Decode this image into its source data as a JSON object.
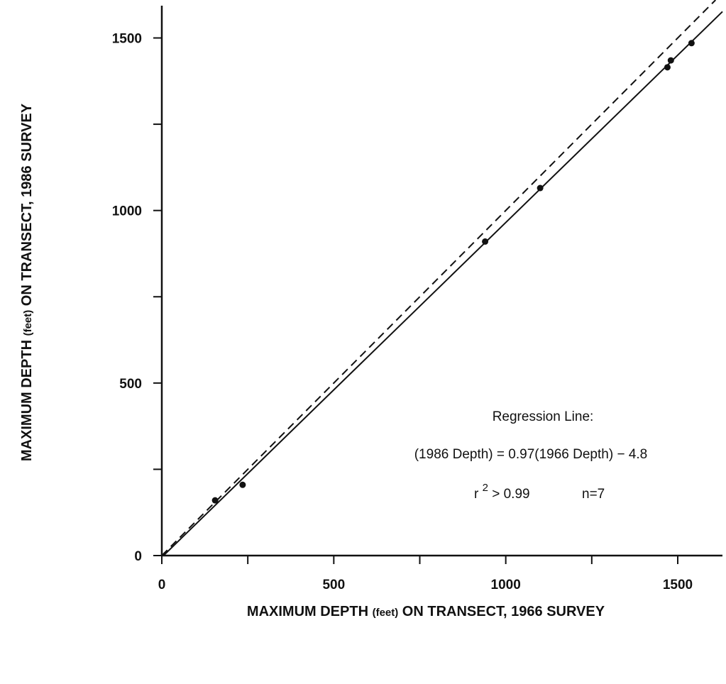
{
  "chart_data": {
    "type": "scatter",
    "title": "",
    "xlabel_parts": [
      "MAXIMUM DEPTH ",
      "(feet)",
      " ON TRANSECT, 1966 SURVEY"
    ],
    "ylabel_parts": [
      "MAXIMUM DEPTH ",
      "(feet)",
      " ON TRANSECT, 1986 SURVEY"
    ],
    "xlim": [
      0,
      1630
    ],
    "ylim": [
      0,
      1610
    ],
    "x_ticks": [
      0,
      250,
      500,
      750,
      1000,
      1250,
      1500
    ],
    "x_tick_labels": [
      "0",
      "",
      "500",
      "",
      "1000",
      "",
      "1500"
    ],
    "y_ticks": [
      0,
      250,
      500,
      750,
      1000,
      1250,
      1500
    ],
    "y_tick_labels": [
      "0",
      "",
      "500",
      "",
      "1000",
      "",
      "1500"
    ],
    "grid": false,
    "points": [
      {
        "x": 155,
        "y": 160
      },
      {
        "x": 235,
        "y": 205
      },
      {
        "x": 940,
        "y": 910
      },
      {
        "x": 1100,
        "y": 1065
      },
      {
        "x": 1470,
        "y": 1415
      },
      {
        "x": 1480,
        "y": 1435
      },
      {
        "x": 1540,
        "y": 1485
      }
    ],
    "regression_line": {
      "slope": 0.97,
      "intercept": -4.8,
      "style": "solid"
    },
    "reference_line": {
      "slope": 1,
      "intercept": 0,
      "style": "dashed"
    },
    "annotations": {
      "heading": "Regression Line:",
      "equation": "(1986 Depth) = 0.97(1966 Depth) − 4.8",
      "r2_prefix": "r",
      "r2_exponent": "2",
      "r2_value": " > 0.99",
      "n": "n=7"
    }
  }
}
